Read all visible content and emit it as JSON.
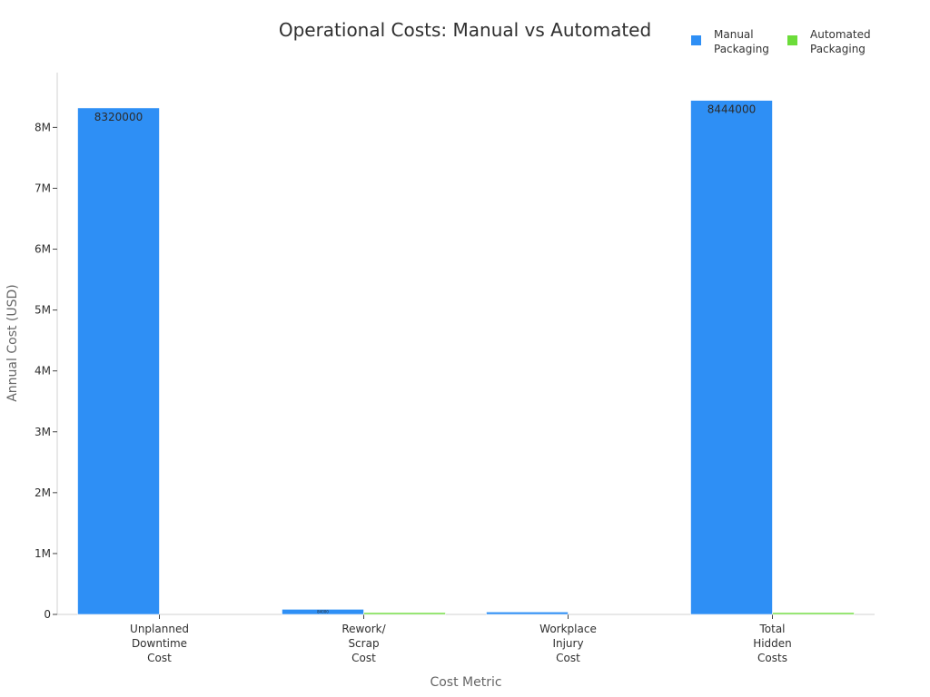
{
  "chart_data": {
    "type": "bar",
    "title": "Operational Costs: Manual vs Automated",
    "xlabel": "Cost Metric",
    "ylabel": "Annual Cost (USD)",
    "categories": [
      [
        "Unplanned",
        "Downtime",
        "Cost"
      ],
      [
        "Rework/",
        "Scrap",
        "Cost"
      ],
      [
        "Workplace",
        "Injury",
        "Cost"
      ],
      [
        "Total",
        "Hidden",
        "Costs"
      ]
    ],
    "series": [
      {
        "name": "Manual Packaging",
        "name_lines": [
          "Manual",
          "Packaging"
        ],
        "color": "#2e8ff5",
        "values": [
          8320000,
          84000,
          40000,
          8444000
        ],
        "labels": [
          "8320000",
          "84000",
          "",
          "8444000"
        ]
      },
      {
        "name": "Automated Packaging",
        "name_lines": [
          "Automated",
          "Packaging"
        ],
        "color": "#6cdc3a",
        "values": [
          0,
          8000,
          0,
          20000
        ],
        "labels": [
          "",
          "",
          "",
          ""
        ]
      }
    ],
    "ylim": [
      0,
      8900000
    ],
    "yticks": [
      {
        "value": 0,
        "label": "0"
      },
      {
        "value": 1000000,
        "label": "1M"
      },
      {
        "value": 2000000,
        "label": "2M"
      },
      {
        "value": 3000000,
        "label": "3M"
      },
      {
        "value": 4000000,
        "label": "4M"
      },
      {
        "value": 5000000,
        "label": "5M"
      },
      {
        "value": 6000000,
        "label": "6M"
      },
      {
        "value": 7000000,
        "label": "7M"
      },
      {
        "value": 8000000,
        "label": "8M"
      }
    ],
    "grid": false,
    "legend_position": "top-right"
  }
}
